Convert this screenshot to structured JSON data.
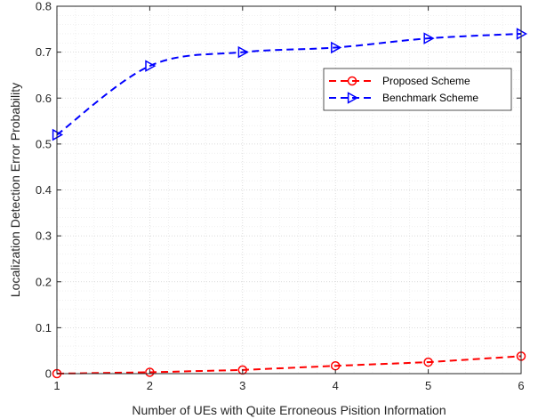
{
  "chart_data": {
    "type": "line",
    "title": "",
    "xlabel": "Number of UEs with Quite Erroneous Pisition Information",
    "ylabel": "Localization Detection Error Probability",
    "x": [
      1,
      2,
      3,
      4,
      5,
      6
    ],
    "xlim": [
      1,
      6
    ],
    "ylim": [
      0,
      0.8
    ],
    "xticks": [
      "1",
      "2",
      "3",
      "4",
      "5",
      "6"
    ],
    "yticks": [
      "0",
      "0.1",
      "0.2",
      "0.3",
      "0.4",
      "0.5",
      "0.6",
      "0.7",
      "0.8"
    ],
    "grid": true,
    "minor_grid": true,
    "legend_position": "top-right",
    "series": [
      {
        "name": "Proposed Scheme",
        "values": [
          0.0,
          0.003,
          0.008,
          0.017,
          0.025,
          0.038
        ],
        "color": "#ff0000",
        "marker": "circle",
        "line_style": "dashed"
      },
      {
        "name": "Benchmark Scheme",
        "values": [
          0.52,
          0.67,
          0.7,
          0.71,
          0.73,
          0.74
        ],
        "color": "#0000ff",
        "marker": "triangle-right",
        "line_style": "dashed"
      }
    ]
  }
}
